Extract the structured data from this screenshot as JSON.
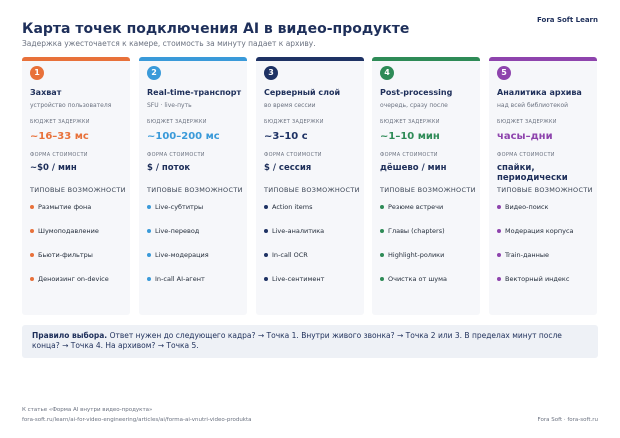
{
  "header": {
    "title": "Карта точек подключения AI в видео-продукте",
    "subtitle": "Задержка ужесточается к камере, стоимость за минуту падает к архиву.",
    "brand": "Fora Soft Learn"
  },
  "labels": {
    "budget": "БЮДЖЕТ ЗАДЕРЖКИ",
    "cost": "ФОРМА СТОИМОСТИ",
    "features": "ТИПОВЫЕ ВОЗМОЖНОСТИ"
  },
  "stages": [
    {
      "num": "1",
      "color": "#e8713a",
      "name": "Захват",
      "sub": "устройство пользователя",
      "latency": "~16–33 мс",
      "cost": "~$0 / мин",
      "features": [
        "Размытие фона",
        "Шумоподавление",
        "Бьюти-фильтры",
        "Деноизинг on-device"
      ]
    },
    {
      "num": "2",
      "color": "#3a9ad9",
      "name": "Real-time-транспорт",
      "sub": "SFU · live-путь",
      "latency": "~100–200 мс",
      "cost": "$ / поток",
      "features": [
        "Live-субтитры",
        "Live-перевод",
        "Live-модерация",
        "In-call AI-агент"
      ]
    },
    {
      "num": "3",
      "color": "#1e3264",
      "name": "Серверный слой",
      "sub": "во время сессии",
      "latency": "~3–10 с",
      "cost": "$ / сессия",
      "features": [
        "Action items",
        "Live-аналитика",
        "In-call OCR",
        "Live-сентимент"
      ]
    },
    {
      "num": "4",
      "color": "#2e8b57",
      "name": "Post-processing",
      "sub": "очередь, сразу после",
      "latency": "~1–10 мин",
      "cost": "дёшево / мин",
      "features": [
        "Резюме встречи",
        "Главы (chapters)",
        "Highlight-ролики",
        "Очистка от шума"
      ]
    },
    {
      "num": "5",
      "color": "#8e44ad",
      "name": "Аналитика архива",
      "sub": "над всей библиотекой",
      "latency": "часы–дни",
      "cost": "спайки, периодически",
      "features": [
        "Видео-поиск",
        "Модерация корпуса",
        "Train-данные",
        "Векторный индекс"
      ]
    }
  ],
  "rule": {
    "label": "Правило выбора.",
    "text": "Ответ нужен до следующего кадра? → Точка 1.   Внутри живого звонка? → Точка 2 или 3.   В пределах минут после конца? → Точка 4.   На архивом? → Точка 5."
  },
  "footer": {
    "source": "К статье «Форма AI внутри видео-продукта»",
    "url": "fora-soft.ru/learn/ai-for-video-engineering/articles/ai/forma-ai-vnutri-video-produkta",
    "credit": "Fora Soft · fora-soft.ru"
  }
}
